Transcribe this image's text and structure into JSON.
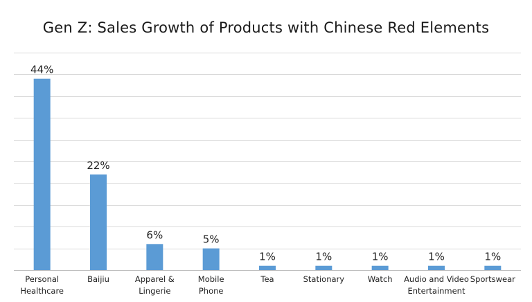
{
  "chart_data": {
    "type": "bar",
    "title": "Gen Z: Sales Growth of Products with Chinese Red Elements",
    "categories": [
      [
        "Personal",
        "Healthcare"
      ],
      [
        "Baijiu"
      ],
      [
        "Apparel &",
        "Lingerie"
      ],
      [
        "Mobile",
        "Phone"
      ],
      [
        "Tea"
      ],
      [
        "Stationary"
      ],
      [
        "Watch"
      ],
      [
        "Audio and Video",
        "Entertainment"
      ],
      [
        "Sportswear"
      ]
    ],
    "values": [
      44,
      22,
      6,
      5,
      1,
      1,
      1,
      1,
      1
    ],
    "data_labels": [
      "44%",
      "22%",
      "6%",
      "5%",
      "1%",
      "1%",
      "1%",
      "1%",
      "1%"
    ],
    "ylim": [
      0,
      50
    ],
    "y_gridlines": [
      0,
      5,
      10,
      15,
      20,
      25,
      30,
      35,
      40,
      45,
      50
    ],
    "xlabel": "",
    "ylabel": "",
    "bar_color": "#5b9bd5",
    "grid_color": "#d9d9d9"
  }
}
